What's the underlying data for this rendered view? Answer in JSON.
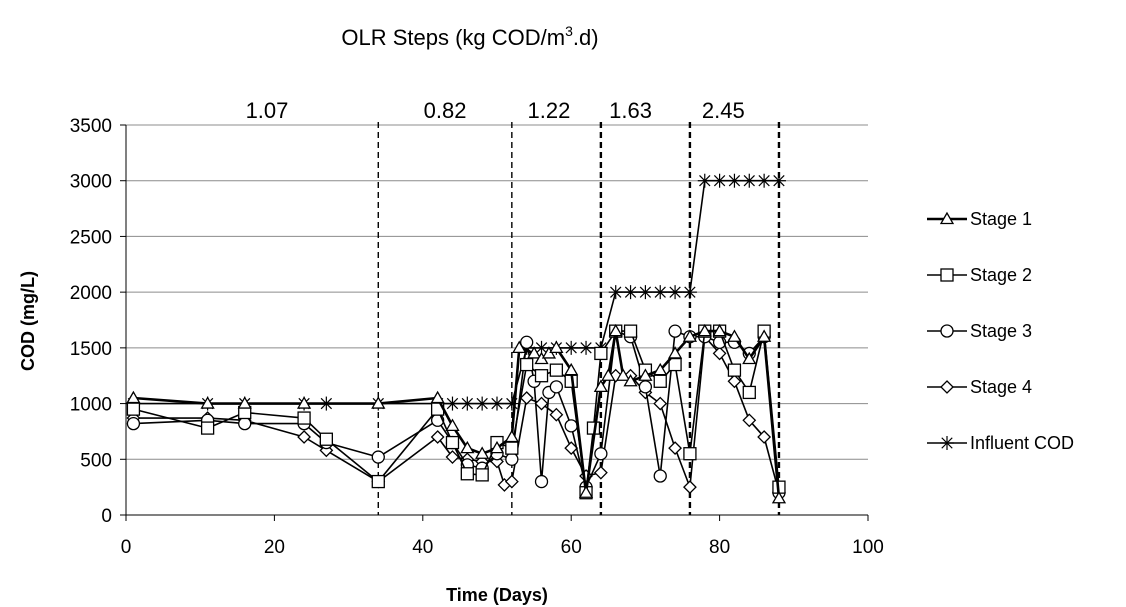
{
  "chart_data": {
    "type": "line",
    "title_main": "OLR Steps (kg COD/m",
    "title_sup": "3",
    "title_tail": ".d)",
    "xlabel": "Time (Days)",
    "ylabel": "COD (mg/L)",
    "xlim": [
      0,
      100
    ],
    "ylim": [
      0,
      3500
    ],
    "xticks": [
      "0",
      "20",
      "40",
      "60",
      "80",
      "100"
    ],
    "yticks": [
      "0",
      "500",
      "1000",
      "1500",
      "2000",
      "2500",
      "3000",
      "3500"
    ],
    "grid": "horizontal",
    "legend": "right",
    "phase_boundaries": [
      34,
      52,
      64,
      76,
      88
    ],
    "olr_labels": [
      {
        "text": "1.07",
        "x": 19
      },
      {
        "text": "0.82",
        "x": 43
      },
      {
        "text": "1.22",
        "x": 57
      },
      {
        "text": "1.63",
        "x": 68
      },
      {
        "text": "2.45",
        "x": 80.5
      }
    ],
    "series": [
      {
        "name": "Stage 1",
        "marker": "triangle",
        "width": 2.6,
        "x": [
          1,
          11,
          16,
          24,
          34,
          42,
          44,
          46,
          48,
          50,
          52,
          53,
          55,
          56,
          57,
          58,
          60,
          62,
          64,
          65,
          66,
          67,
          68,
          70,
          72,
          74,
          76,
          78,
          80,
          82,
          84,
          86,
          88
        ],
        "y": [
          1050,
          1000,
          1000,
          1000,
          1000,
          1050,
          800,
          600,
          550,
          600,
          700,
          1500,
          1450,
          1400,
          1450,
          1500,
          1300,
          200,
          1150,
          1250,
          1650,
          1250,
          1200,
          1250,
          1300,
          1450,
          1600,
          1650,
          1650,
          1600,
          1400,
          1600,
          150
        ]
      },
      {
        "name": "Stage 2",
        "marker": "square",
        "width": 1.6,
        "x": [
          1,
          11,
          16,
          24,
          27,
          34,
          42,
          44,
          46,
          48,
          50,
          52,
          54,
          56,
          58,
          60,
          62,
          63,
          64,
          66,
          68,
          70,
          72,
          74,
          76,
          78,
          80,
          82,
          84,
          86,
          88
        ],
        "y": [
          950,
          780,
          920,
          870,
          680,
          300,
          950,
          650,
          370,
          360,
          650,
          600,
          1350,
          1250,
          1300,
          1200,
          200,
          780,
          1450,
          1650,
          1650,
          1300,
          1200,
          1350,
          550,
          1650,
          1650,
          1300,
          1100,
          1650,
          250
        ]
      },
      {
        "name": "Stage 3",
        "marker": "circle",
        "width": 1.6,
        "x": [
          1,
          11,
          16,
          24,
          27,
          34,
          42,
          44,
          46,
          48,
          50,
          52,
          54,
          55,
          56,
          57,
          58,
          60,
          62,
          64,
          66,
          68,
          70,
          72,
          74,
          76,
          78,
          80,
          82,
          84,
          86,
          88
        ],
        "y": [
          820,
          850,
          820,
          820,
          650,
          520,
          850,
          650,
          450,
          420,
          550,
          500,
          1550,
          1200,
          300,
          1100,
          1150,
          800,
          250,
          550,
          1650,
          1600,
          1150,
          350,
          1650,
          1600,
          1600,
          1550,
          1550,
          1450,
          1600,
          200
        ]
      },
      {
        "name": "Stage 4",
        "marker": "diamond",
        "width": 1.6,
        "x": [
          1,
          11,
          16,
          24,
          27,
          34,
          42,
          44,
          46,
          48,
          50,
          51,
          52,
          54,
          56,
          58,
          60,
          62,
          64,
          66,
          68,
          70,
          72,
          74,
          76,
          78,
          80,
          82,
          84,
          86,
          88
        ],
        "y": [
          870,
          870,
          850,
          700,
          580,
          300,
          700,
          520,
          500,
          480,
          480,
          270,
          300,
          1050,
          1000,
          900,
          600,
          350,
          380,
          1250,
          1250,
          1100,
          1000,
          600,
          250,
          1600,
          1450,
          1200,
          850,
          700,
          200
        ]
      },
      {
        "name": "Influent COD",
        "marker": "star",
        "width": 1.6,
        "x": [
          1,
          11,
          16,
          24,
          27,
          34,
          42,
          44,
          46,
          48,
          50,
          52,
          54,
          56,
          58,
          60,
          62,
          64,
          66,
          68,
          70,
          72,
          74,
          76,
          78,
          80,
          82,
          84,
          86,
          88
        ],
        "y": [
          1000,
          1000,
          1000,
          1000,
          1000,
          1000,
          1000,
          1000,
          1000,
          1000,
          1000,
          1000,
          1500,
          1500,
          1500,
          1500,
          1500,
          1500,
          2000,
          2000,
          2000,
          2000,
          2000,
          2000,
          3000,
          3000,
          3000,
          3000,
          3000,
          3000
        ]
      }
    ]
  }
}
